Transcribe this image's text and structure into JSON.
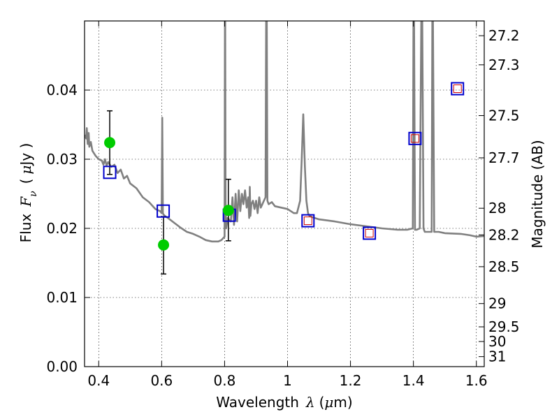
{
  "chart_data": {
    "type": "scatter",
    "xlabel": "Wavelength",
    "xlabel_symbol": "λ",
    "xlabel_unit_open": "(",
    "xlabel_unit_mu": "μ",
    "xlabel_unit_rest": "m)",
    "ylabel": "Flux",
    "ylabel_symbol": "F",
    "ylabel_symbol_sub": "ν",
    "ylabel_unit_open": "(",
    "ylabel_unit_mu": "μ",
    "ylabel_unit_rest": "Jy )",
    "y2label": "Magnitude (AB)",
    "xlim": [
      0.355,
      1.625
    ],
    "ylim": [
      0.0,
      0.05
    ],
    "grid": true,
    "x_ticks": [
      0.4,
      0.6,
      0.8,
      1.0,
      1.2,
      1.4,
      1.6
    ],
    "x_tick_labels": [
      "0.4",
      "0.6",
      "0.8",
      "1",
      "1.2",
      "1.4",
      "1.6"
    ],
    "y_ticks": [
      0.0,
      0.01,
      0.02,
      0.03,
      0.04
    ],
    "y_tick_labels": [
      "0.00",
      "0.01",
      "0.02",
      "0.03",
      "0.04"
    ],
    "y2_ticks": [
      27.2,
      27.3,
      27.5,
      27.7,
      28,
      28.2,
      28.5,
      29,
      29.5,
      30,
      31
    ],
    "y2_tick_labels": [
      "27.2",
      "27.3",
      "27.5",
      "27.7",
      "28",
      "28.2",
      "28.5",
      "29",
      "29.5",
      "30",
      "31"
    ],
    "series": [
      {
        "kind": "spectrum",
        "color": "#808080",
        "x": [
          0.355,
          0.36,
          0.362,
          0.365,
          0.368,
          0.37,
          0.375,
          0.38,
          0.39,
          0.4,
          0.41,
          0.415,
          0.42,
          0.425,
          0.43,
          0.44,
          0.45,
          0.46,
          0.47,
          0.48,
          0.49,
          0.5,
          0.52,
          0.54,
          0.56,
          0.58,
          0.595,
          0.6,
          0.602,
          0.604,
          0.606,
          0.61,
          0.62,
          0.64,
          0.66,
          0.68,
          0.7,
          0.72,
          0.74,
          0.76,
          0.78,
          0.79,
          0.8,
          0.801,
          0.802,
          0.803,
          0.805,
          0.81,
          0.82,
          0.825,
          0.83,
          0.835,
          0.84,
          0.845,
          0.85,
          0.855,
          0.86,
          0.865,
          0.87,
          0.875,
          0.878,
          0.88,
          0.882,
          0.885,
          0.89,
          0.895,
          0.9,
          0.905,
          0.91,
          0.915,
          0.92,
          0.925,
          0.93,
          0.932,
          0.934,
          0.936,
          0.94,
          0.95,
          0.96,
          0.98,
          1.0,
          1.02,
          1.03,
          1.04,
          1.045,
          1.05,
          1.055,
          1.06,
          1.065,
          1.07,
          1.08,
          1.1,
          1.15,
          1.2,
          1.25,
          1.3,
          1.35,
          1.38,
          1.398,
          1.4,
          1.402,
          1.405,
          1.41,
          1.42,
          1.425,
          1.428,
          1.432,
          1.436,
          1.44,
          1.45,
          1.458,
          1.46,
          1.462,
          1.466,
          1.48,
          1.5,
          1.55,
          1.58,
          1.6,
          1.625
        ],
        "y": [
          0.0335,
          0.033,
          0.0345,
          0.0322,
          0.0338,
          0.0318,
          0.0325,
          0.0312,
          0.0305,
          0.03,
          0.0298,
          0.0292,
          0.03,
          0.0291,
          0.0296,
          0.0289,
          0.0292,
          0.028,
          0.0285,
          0.0272,
          0.0276,
          0.0265,
          0.0258,
          0.0245,
          0.0238,
          0.0228,
          0.0225,
          0.0222,
          0.036,
          0.0222,
          0.022,
          0.0218,
          0.0215,
          0.0208,
          0.0201,
          0.0195,
          0.0192,
          0.0188,
          0.0183,
          0.0181,
          0.0181,
          0.0183,
          0.0188,
          0.05,
          0.05,
          0.024,
          0.02,
          0.0215,
          0.021,
          0.0245,
          0.0205,
          0.025,
          0.021,
          0.0255,
          0.0225,
          0.025,
          0.0235,
          0.0255,
          0.023,
          0.0245,
          0.0215,
          0.026,
          0.0218,
          0.0235,
          0.024,
          0.0228,
          0.024,
          0.0222,
          0.0245,
          0.023,
          0.0235,
          0.024,
          0.0245,
          0.05,
          0.05,
          0.024,
          0.0235,
          0.0238,
          0.0232,
          0.023,
          0.0228,
          0.0222,
          0.0222,
          0.024,
          0.03,
          0.0365,
          0.029,
          0.024,
          0.0222,
          0.0218,
          0.0216,
          0.0213,
          0.021,
          0.0206,
          0.0203,
          0.02,
          0.0198,
          0.0198,
          0.02,
          0.05,
          0.05,
          0.0198,
          0.0198,
          0.02,
          0.05,
          0.05,
          0.02,
          0.0195,
          0.0195,
          0.0195,
          0.0195,
          0.05,
          0.05,
          0.0195,
          0.0195,
          0.0193,
          0.0192,
          0.019,
          0.0188,
          0.0189
        ]
      },
      {
        "kind": "model_photometry",
        "marker": "open-square",
        "color": "#0000cc",
        "x": [
          0.435,
          0.605,
          0.815,
          1.065,
          1.26,
          1.405,
          1.54
        ],
        "y": [
          0.0281,
          0.0225,
          0.0219,
          0.0211,
          0.0193,
          0.033,
          0.0402
        ]
      },
      {
        "kind": "model_photometry_inner",
        "marker": "open-square-small",
        "color": "#cc0000",
        "x": [
          1.065,
          1.26,
          1.405,
          1.54
        ],
        "y": [
          0.0211,
          0.0193,
          0.033,
          0.0402
        ]
      },
      {
        "kind": "observed",
        "marker": "filled-circle",
        "color": "#00cc00",
        "x": [
          0.435,
          0.606,
          0.812
        ],
        "y": [
          0.0324,
          0.0176,
          0.0226
        ],
        "err_low": [
          0.0278,
          0.0134,
          0.0182
        ],
        "err_high": [
          0.037,
          0.0217,
          0.0271
        ]
      }
    ]
  }
}
